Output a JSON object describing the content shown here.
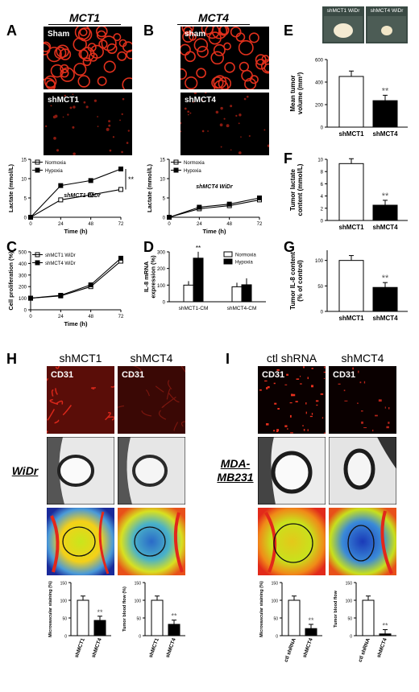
{
  "panels": {
    "A": {
      "letter": "A",
      "title": "MCT1",
      "top_label": "Sham",
      "bottom_label": "shMCT1",
      "cell_line": "shMCT1 WiDr"
    },
    "B": {
      "letter": "B",
      "title": "MCT4",
      "top_label": "sham",
      "bottom_label": "shMCT4",
      "cell_line": "shMCT4 WiDr"
    },
    "C": {
      "letter": "C"
    },
    "D": {
      "letter": "D"
    },
    "E": {
      "letter": "E",
      "photo_left": "shMCT1 WiDr",
      "photo_right": "shMCT4 WiDr"
    },
    "F": {
      "letter": "F"
    },
    "G": {
      "letter": "G"
    },
    "H": {
      "letter": "H",
      "col1": "shMCT1",
      "col2": "shMCT4",
      "stain": "CD31",
      "side": "WiDr"
    },
    "I": {
      "letter": "I",
      "col1": "ctl shRNA",
      "col2": "shMCT4",
      "stain": "CD31",
      "side": "MDA-\nMB231",
      "side1": "MDA-",
      "side2": "MB231"
    }
  },
  "chart_data": [
    {
      "id": "A",
      "type": "line",
      "ylabel": "Lactate (mmol/L)",
      "xlabel": "Time (h)",
      "x": [
        0,
        24,
        48,
        72
      ],
      "ylim": [
        0,
        15
      ],
      "yticks": [
        0,
        5,
        10,
        15
      ],
      "series": [
        {
          "name": "Normoxia",
          "values": [
            0,
            4.5,
            5.8,
            7.2
          ]
        },
        {
          "name": "Hypoxia",
          "values": [
            0,
            8.2,
            9.5,
            12.5
          ]
        }
      ],
      "annotation": "**",
      "legend": "top-left"
    },
    {
      "id": "B",
      "type": "line",
      "ylabel": "Lactate (mmol/L)",
      "xlabel": "Time (h)",
      "x": [
        0,
        24,
        48,
        72
      ],
      "ylim": [
        0,
        15
      ],
      "yticks": [
        0,
        5,
        10,
        15
      ],
      "series": [
        {
          "name": "Normoxia",
          "values": [
            0,
            2.2,
            3.0,
            4.5
          ]
        },
        {
          "name": "Hypoxia",
          "values": [
            0,
            2.6,
            3.4,
            5.0
          ]
        }
      ],
      "legend": "top-left"
    },
    {
      "id": "C",
      "type": "line",
      "ylabel": "Cell proliferation (%)",
      "xlabel": "Time (h)",
      "x": [
        0,
        24,
        48,
        72
      ],
      "ylim": [
        0,
        500
      ],
      "yticks": [
        0,
        100,
        200,
        300,
        400,
        500
      ],
      "series": [
        {
          "name": "shMCT1 WiDr",
          "values": [
            100,
            120,
            200,
            420
          ]
        },
        {
          "name": "shMCT4 WiDr",
          "values": [
            100,
            125,
            215,
            445
          ]
        }
      ],
      "legend": "top-left"
    },
    {
      "id": "D",
      "type": "bar",
      "ylabel": "IL-8 mRNA expression (%)",
      "categories": [
        "shMCT1-CM",
        "shMCT4-CM"
      ],
      "ylim": [
        0,
        300
      ],
      "yticks": [
        0,
        100,
        200,
        300
      ],
      "series": [
        {
          "name": "Normoxia",
          "values": [
            100,
            90
          ]
        },
        {
          "name": "Hypoxia",
          "values": [
            262,
            102
          ]
        }
      ],
      "annotation": "**",
      "legend": "top-right"
    },
    {
      "id": "E",
      "type": "bar",
      "ylabel": "Mean tumor volume (mm³)",
      "categories": [
        "shMCT1",
        "shMCT4"
      ],
      "values": [
        450,
        235
      ],
      "ylim": [
        0,
        600
      ],
      "yticks": [
        0,
        200,
        400,
        600
      ],
      "annotation": "**"
    },
    {
      "id": "F",
      "type": "bar",
      "ylabel": "Tumor lactate content (mmol/L)",
      "categories": [
        "shMCT1",
        "shMCT4"
      ],
      "values": [
        9.3,
        2.5
      ],
      "ylim": [
        0,
        10
      ],
      "yticks": [
        0,
        2,
        4,
        6,
        8,
        10
      ],
      "annotation": "**"
    },
    {
      "id": "G",
      "type": "bar",
      "ylabel": "Tumor IL-8 content (% of control)",
      "categories": [
        "shMCT1",
        "shMCT4"
      ],
      "values": [
        100,
        47
      ],
      "ylim": [
        0,
        120
      ],
      "yticks": [
        0,
        50,
        100
      ],
      "annotation": "**"
    },
    {
      "id": "H1",
      "type": "bar",
      "ylabel": "Microvascular staining (%)",
      "categories": [
        "shMCT1",
        "shMCT4"
      ],
      "values": [
        100,
        43
      ],
      "ylim": [
        0,
        150
      ],
      "yticks": [
        0,
        50,
        100,
        150
      ],
      "annotation": "**"
    },
    {
      "id": "H2",
      "type": "bar",
      "ylabel": "Tumor blood flow (%)",
      "categories": [
        "shMCT1",
        "shMCT4"
      ],
      "values": [
        100,
        32
      ],
      "ylim": [
        0,
        150
      ],
      "yticks": [
        0,
        50,
        100,
        150
      ],
      "annotation": "**"
    },
    {
      "id": "I1",
      "type": "bar",
      "ylabel": "Microvascular staining (%)",
      "categories": [
        "ctl shRNA",
        "shMCT4"
      ],
      "values": [
        100,
        20
      ],
      "ylim": [
        0,
        150
      ],
      "yticks": [
        0,
        50,
        100,
        150
      ],
      "annotation": "**"
    },
    {
      "id": "I2",
      "type": "bar",
      "ylabel": "Tumor blood flow",
      "categories": [
        "ctl shRNA",
        "shMCT4"
      ],
      "values": [
        100,
        5
      ],
      "ylim": [
        0,
        150
      ],
      "yticks": [
        0,
        50,
        100,
        150
      ],
      "annotation": "**"
    }
  ]
}
